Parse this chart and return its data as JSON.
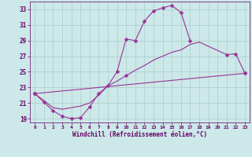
{
  "xlabel": "Windchill (Refroidissement éolien,°C)",
  "bg_color": "#cce8e8",
  "grid_color": "#aacccc",
  "line_color": "#993399",
  "axis_color": "#660066",
  "xlim": [
    -0.5,
    23.5
  ],
  "ylim": [
    18.5,
    34.0
  ],
  "yticks": [
    19,
    21,
    23,
    25,
    27,
    29,
    31,
    33
  ],
  "xticks": [
    0,
    1,
    2,
    3,
    4,
    5,
    6,
    7,
    8,
    9,
    10,
    11,
    12,
    13,
    14,
    15,
    16,
    17,
    18,
    19,
    20,
    21,
    22,
    23
  ],
  "segments": {
    "line1": [
      [
        0,
        22.2
      ],
      [
        1,
        21.1
      ],
      [
        2,
        20.0
      ],
      [
        3,
        19.3
      ],
      [
        4,
        19.0
      ],
      [
        5,
        19.1
      ],
      [
        6,
        20.5
      ],
      [
        7,
        22.2
      ],
      [
        8,
        23.2
      ],
      [
        9,
        25.0
      ],
      [
        10,
        29.2
      ],
      [
        11,
        29.0
      ],
      [
        12,
        31.5
      ],
      [
        13,
        32.8
      ],
      [
        14,
        33.2
      ],
      [
        15,
        33.5
      ],
      [
        16,
        32.6
      ],
      [
        17,
        29.0
      ]
    ],
    "line2": [
      [
        0,
        22.2
      ],
      [
        2,
        20.4
      ],
      [
        3,
        20.2
      ],
      [
        5,
        20.6
      ],
      [
        6,
        21.0
      ],
      [
        7,
        22.0
      ],
      [
        8,
        23.2
      ],
      [
        9,
        23.8
      ],
      [
        10,
        24.5
      ],
      [
        11,
        25.2
      ],
      [
        12,
        25.8
      ],
      [
        13,
        26.5
      ],
      [
        14,
        27.0
      ],
      [
        15,
        27.5
      ],
      [
        16,
        27.8
      ],
      [
        17,
        28.5
      ],
      [
        18,
        28.8
      ],
      [
        21,
        27.2
      ],
      [
        22,
        27.3
      ],
      [
        23,
        24.8
      ]
    ],
    "line3": [
      [
        0,
        22.2
      ],
      [
        23,
        24.8
      ]
    ]
  },
  "marker_indices": {
    "line1": [
      0,
      1,
      2,
      3,
      4,
      5,
      6,
      7,
      8,
      9,
      10,
      11,
      12,
      13,
      14,
      15,
      16,
      17
    ],
    "line2": [
      0,
      8,
      18,
      21,
      22,
      23
    ],
    "line3": [
      0,
      23
    ]
  }
}
